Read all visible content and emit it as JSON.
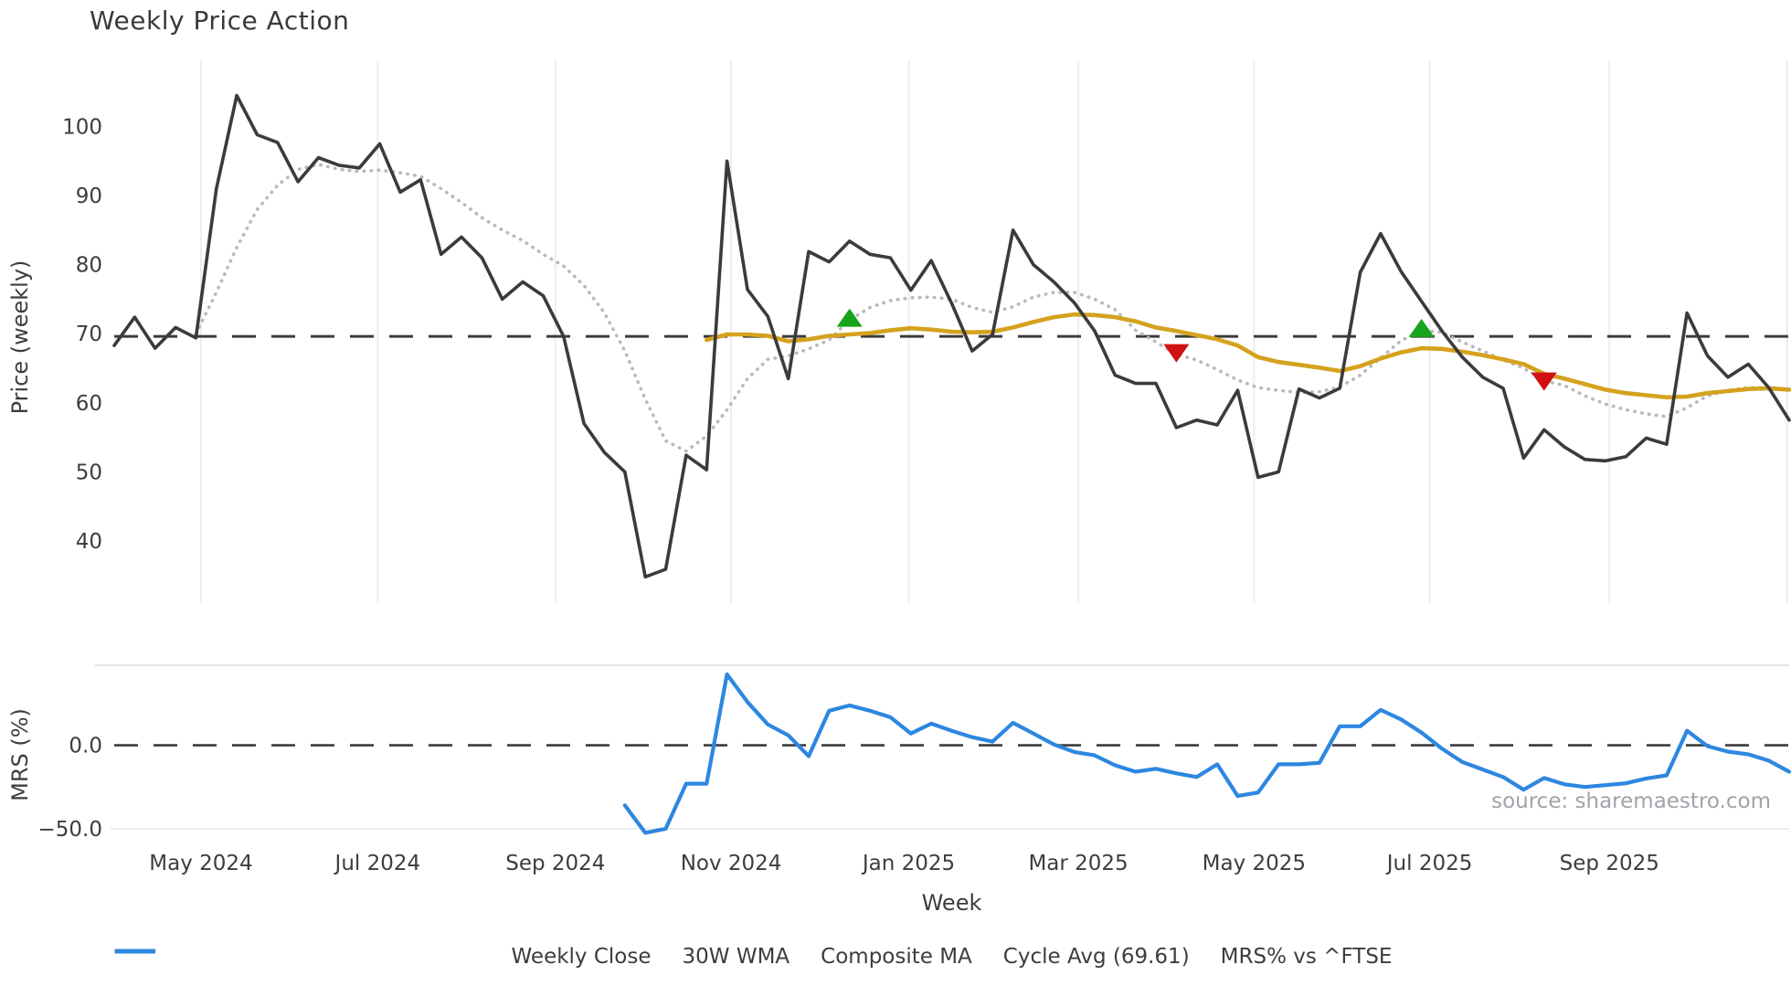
{
  "title": "Weekly Price Action",
  "xlabel": "Week",
  "source": "source: sharemaestro.com",
  "colors": {
    "close": "#3b3b3b",
    "wma": "#d5a21e",
    "composite": "#b9b9bf",
    "cycle": "#3b3b3b",
    "mrs": "#2d87e0",
    "buy_marker": "#18a31c",
    "sell_marker": "#cf1111",
    "grid": "#ebedf2",
    "panel_border": "#e2e4ea",
    "tick_text": "#3d3d3d"
  },
  "legend": [
    {
      "label": "Weekly Close",
      "style": "solid",
      "color": "#3b3b3b",
      "width": 4
    },
    {
      "label": "30W WMA",
      "style": "solid",
      "color": "#d5a21e",
      "width": 5
    },
    {
      "label": "Composite MA",
      "style": "dotted",
      "color": "#b9b9bf",
      "width": 4
    },
    {
      "label": "Cycle Avg (69.61)",
      "style": "dashed",
      "color": "#3b3b3b",
      "width": 3
    },
    {
      "label": "MRS% vs ^FTSE",
      "style": "solid",
      "color": "#2d87e0",
      "width": 5
    }
  ],
  "x_ticks": [
    {
      "week": 4.25,
      "label": "May 2024"
    },
    {
      "week": 12.9,
      "label": "Jul 2024"
    },
    {
      "week": 21.6,
      "label": "Sep 2024"
    },
    {
      "week": 30.2,
      "label": "Nov 2024"
    },
    {
      "week": 38.9,
      "label": "Jan 2025"
    },
    {
      "week": 47.2,
      "label": "Mar 2025"
    },
    {
      "week": 55.8,
      "label": "May 2025"
    },
    {
      "week": 64.4,
      "label": "Jul 2025"
    },
    {
      "week": 73.2,
      "label": "Sep 2025"
    },
    {
      "week": 81.9,
      "label": ""
    }
  ],
  "chart_data": [
    {
      "type": "line",
      "title": "Weekly Price Action",
      "xlabel": "Week",
      "ylabel": "Price (weekly)",
      "ylim": [
        31,
        108
      ],
      "yticks": [
        40,
        50,
        60,
        70,
        80,
        90,
        100
      ],
      "grid": "vertical-months",
      "cycle_avg": 69.61,
      "x_unit": "week index (0 = late Apr 2024, 82 = late Oct 2025)",
      "series": [
        {
          "name": "Weekly Close",
          "values": [
            68.3,
            72.4,
            67.9,
            70.9,
            69.4,
            91.0,
            104.5,
            98.8,
            97.7,
            92.0,
            95.5,
            94.4,
            94.0,
            97.5,
            90.5,
            92.3,
            81.5,
            84.0,
            81.0,
            75.0,
            77.5,
            75.5,
            69.6,
            57.0,
            52.8,
            50.0,
            34.8,
            35.9,
            52.4,
            50.3,
            95.0,
            76.4,
            72.5,
            63.5,
            81.9,
            80.4,
            83.4,
            81.5,
            81.0,
            76.3,
            80.6,
            74.4,
            67.5,
            69.9,
            85.0,
            80.0,
            77.5,
            74.5,
            70.4,
            64.0,
            62.8,
            62.8,
            56.4,
            57.5,
            56.8,
            61.8,
            49.2,
            50.0,
            62.0,
            60.7,
            62.1,
            78.9,
            84.5,
            79.0,
            74.7,
            70.4,
            66.6,
            63.7,
            62.1,
            52.0,
            56.1,
            53.6,
            51.8,
            51.6,
            52.2,
            54.9,
            54.0,
            73.0,
            66.8,
            63.7,
            65.6,
            62.2,
            57.5
          ]
        },
        {
          "name": "Composite MA",
          "values": [
            null,
            null,
            null,
            null,
            70.0,
            76.0,
            82.5,
            88.0,
            91.5,
            93.8,
            94.5,
            93.8,
            93.5,
            93.7,
            93.3,
            92.8,
            91.0,
            89.0,
            86.8,
            85.0,
            83.5,
            81.5,
            79.8,
            77.0,
            73.0,
            67.5,
            60.5,
            54.5,
            53.0,
            55.2,
            59.0,
            63.5,
            66.3,
            66.8,
            67.8,
            69.1,
            72.0,
            73.8,
            74.8,
            75.2,
            75.3,
            75.0,
            73.8,
            73.1,
            73.9,
            75.3,
            76.0,
            76.0,
            75.0,
            73.5,
            70.5,
            68.8,
            67.0,
            66.2,
            64.8,
            63.3,
            62.2,
            61.8,
            61.5,
            61.6,
            62.3,
            64.0,
            66.5,
            69.0,
            70.5,
            70.2,
            68.8,
            67.5,
            66.2,
            65.0,
            63.2,
            62.5,
            61.0,
            59.8,
            59.0,
            58.4,
            58.0,
            59.3,
            61.0,
            61.8,
            62.2,
            62.2,
            62.0
          ]
        },
        {
          "name": "30W WMA",
          "values": [
            null,
            null,
            null,
            null,
            null,
            null,
            null,
            null,
            null,
            null,
            null,
            null,
            null,
            null,
            null,
            null,
            null,
            null,
            null,
            null,
            null,
            null,
            null,
            null,
            null,
            null,
            null,
            null,
            null,
            69.1,
            69.9,
            69.9,
            69.7,
            68.9,
            69.2,
            69.7,
            69.9,
            70.1,
            70.5,
            70.8,
            70.6,
            70.3,
            70.2,
            70.3,
            70.9,
            71.7,
            72.4,
            72.8,
            72.7,
            72.4,
            71.8,
            70.9,
            70.4,
            69.8,
            69.2,
            68.3,
            66.6,
            65.9,
            65.5,
            65.1,
            64.6,
            65.3,
            66.4,
            67.3,
            67.9,
            67.8,
            67.4,
            66.9,
            66.3,
            65.6,
            64.2,
            63.5,
            62.7,
            61.9,
            61.4,
            61.1,
            60.8,
            60.9,
            61.4,
            61.7,
            62.0,
            62.1,
            61.9
          ]
        }
      ],
      "markers": {
        "buy_triangles_up": [
          {
            "week": 36,
            "value": 72.2
          },
          {
            "week": 64,
            "value": 70.7
          }
        ],
        "sell_triangles_down": [
          {
            "week": 52,
            "value": 67.3
          },
          {
            "week": 70,
            "value": 63.2
          }
        ]
      }
    },
    {
      "type": "line",
      "ylabel": "MRS (%)",
      "ylim": [
        -55,
        48
      ],
      "yticks_labels": [
        "0.0",
        "−50.0"
      ],
      "yticks": [
        0,
        -50
      ],
      "zero_dashed_line": 0,
      "series": [
        {
          "name": "MRS% vs ^FTSE",
          "values": [
            null,
            null,
            null,
            null,
            null,
            null,
            null,
            null,
            null,
            null,
            null,
            null,
            null,
            null,
            null,
            null,
            null,
            null,
            null,
            null,
            null,
            null,
            null,
            null,
            null,
            -36,
            -52.5,
            -50,
            -23,
            -23,
            42.5,
            26,
            12.5,
            6,
            -6.5,
            20.7,
            23.9,
            20.7,
            16.8,
            7.1,
            13,
            8.7,
            4.9,
            2.2,
            13.5,
            7.1,
            0.5,
            -4,
            -6,
            -12,
            -15.8,
            -14.1,
            -16.8,
            -19,
            -11.4,
            -30.4,
            -28.3,
            -11.4,
            -11.4,
            -10.5,
            11.4,
            11.4,
            21.2,
            15.5,
            7.6,
            -2,
            -10,
            -14.5,
            -19,
            -26.6,
            -19.6,
            -23.4,
            -25,
            -23.9,
            -22.8,
            -19.9,
            -18,
            8.7,
            -0.5,
            -3.8,
            -5.4,
            -9.2,
            -15.8
          ]
        }
      ]
    }
  ]
}
